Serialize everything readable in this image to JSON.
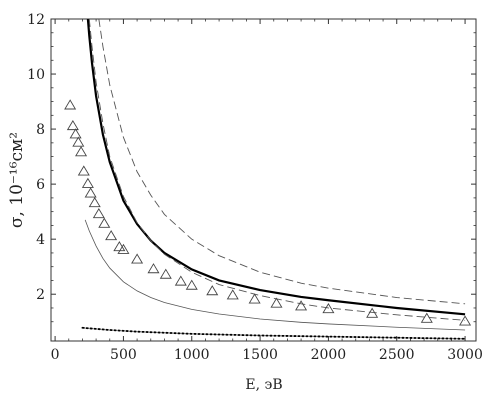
{
  "chart_data": {
    "type": "scatter",
    "xlabel": "E, эВ",
    "ylabel": "σ, 10⁻¹⁶см²",
    "xlim": [
      -30,
      3080
    ],
    "ylim": [
      0.3,
      12
    ],
    "xticks": [
      0,
      500,
      1000,
      1500,
      2000,
      2500,
      3000
    ],
    "yticks": [
      2,
      4,
      6,
      8,
      10,
      12
    ],
    "grid": false,
    "series": [
      {
        "style": "solid-thick",
        "x": [
          240,
          250,
          270,
          300,
          350,
          400,
          500,
          600,
          700,
          800,
          1000,
          1200,
          1500,
          1800,
          2000,
          2500,
          3000
        ],
        "y": [
          12.0,
          11.4,
          10.4,
          9.2,
          7.8,
          6.8,
          5.4,
          4.55,
          3.95,
          3.5,
          2.9,
          2.5,
          2.15,
          1.9,
          1.78,
          1.5,
          1.27
        ]
      },
      {
        "style": "dashed-upper",
        "x": [
          320,
          350,
          400,
          500,
          600,
          700,
          800,
          1000,
          1200,
          1500,
          1800,
          2000,
          2500,
          3000
        ],
        "y": [
          12.0,
          11.0,
          9.6,
          7.7,
          6.45,
          5.6,
          4.9,
          4.0,
          3.4,
          2.8,
          2.4,
          2.22,
          1.88,
          1.65
        ]
      },
      {
        "style": "dashed-lower",
        "x": [
          250,
          270,
          300,
          350,
          400,
          500,
          600,
          700,
          800,
          1000,
          1200,
          1500,
          1800,
          2000,
          2500,
          3000
        ],
        "y": [
          12.0,
          11.0,
          9.7,
          8.2,
          7.0,
          5.55,
          4.6,
          3.95,
          3.45,
          2.8,
          2.35,
          1.95,
          1.65,
          1.5,
          1.25,
          1.05
        ]
      },
      {
        "style": "solid-thin",
        "x": [
          220,
          250,
          300,
          350,
          400,
          500,
          600,
          700,
          800,
          1000,
          1200,
          1500,
          1800,
          2000,
          2500,
          3000
        ],
        "y": [
          4.7,
          4.3,
          3.75,
          3.3,
          2.95,
          2.45,
          2.12,
          1.88,
          1.7,
          1.45,
          1.28,
          1.1,
          0.98,
          0.92,
          0.8,
          0.7
        ]
      },
      {
        "style": "dotted",
        "x": [
          200,
          400,
          600,
          800,
          1000,
          1500,
          2000,
          2500,
          3000
        ],
        "y": [
          0.78,
          0.7,
          0.64,
          0.6,
          0.56,
          0.5,
          0.46,
          0.42,
          0.38
        ]
      },
      {
        "style": "triangles",
        "x": [
          110,
          130,
          150,
          170,
          190,
          210,
          240,
          260,
          290,
          320,
          360,
          410,
          470,
          500,
          600,
          720,
          810,
          920,
          1000,
          1150,
          1300,
          1460,
          1620,
          1800,
          2000,
          2320,
          2720,
          3000
        ],
        "y": [
          8.85,
          8.1,
          7.8,
          7.5,
          7.15,
          6.45,
          6.0,
          5.65,
          5.3,
          4.9,
          4.55,
          4.1,
          3.7,
          3.6,
          3.25,
          2.9,
          2.7,
          2.45,
          2.3,
          2.1,
          1.95,
          1.8,
          1.65,
          1.55,
          1.45,
          1.28,
          1.1,
          1.0
        ]
      }
    ]
  }
}
